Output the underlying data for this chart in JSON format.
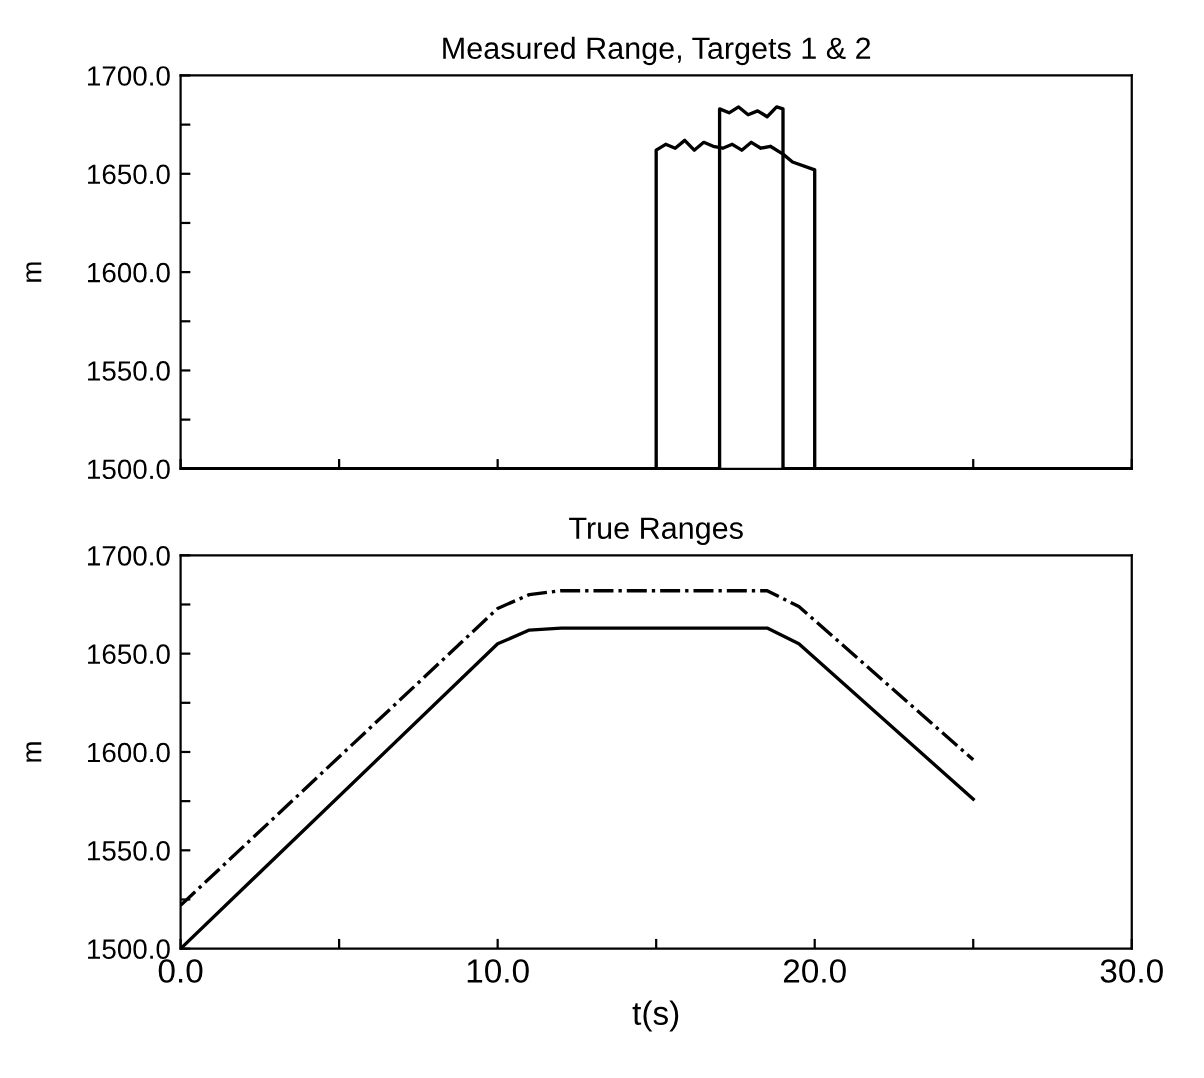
{
  "chart_data": [
    {
      "type": "line",
      "title": "Measured Range, Targets 1 & 2",
      "ylabel": "m",
      "tick_labels": "y",
      "grid": false,
      "legend": false,
      "xlim": [
        0,
        30
      ],
      "xticks": [
        {
          "value": 0,
          "label": null
        },
        {
          "value": 5,
          "label": null
        },
        {
          "value": 10,
          "label": null
        },
        {
          "value": 15,
          "label": null
        },
        {
          "value": 20,
          "label": null
        },
        {
          "value": 25,
          "label": null
        },
        {
          "value": 30,
          "label": null
        }
      ],
      "ylim": [
        1500,
        1700
      ],
      "yticks": [
        {
          "value": 1500,
          "label": "1500.0"
        },
        {
          "value": 1525,
          "label": null
        },
        {
          "value": 1550,
          "label": "1550.0"
        },
        {
          "value": 1575,
          "label": null
        },
        {
          "value": 1600,
          "label": "1600.0"
        },
        {
          "value": 1625,
          "label": null
        },
        {
          "value": 1650,
          "label": "1650.0"
        },
        {
          "value": 1675,
          "label": null
        },
        {
          "value": 1700,
          "label": "1700.0"
        }
      ],
      "series": [
        {
          "color": "#000000",
          "line_style": "solid",
          "x": [
            0,
            15,
            15,
            15.3,
            15.6,
            15.9,
            16.2,
            16.5,
            16.8,
            17.1,
            17.4,
            17.7,
            18.0,
            18.3,
            18.6,
            19.0,
            19.3,
            20,
            20,
            30
          ],
          "values": [
            1500,
            1500,
            1662,
            1665,
            1663,
            1667,
            1662,
            1666,
            1664,
            1663,
            1665,
            1662,
            1666,
            1663,
            1664,
            1660,
            1656,
            1652,
            1500,
            1500
          ]
        },
        {
          "color": "#000000",
          "line_style": "solid",
          "x": [
            0,
            17,
            17,
            17.3,
            17.6,
            17.9,
            18.2,
            18.5,
            18.8,
            19,
            19,
            30
          ],
          "values": [
            1500,
            1500,
            1683,
            1681,
            1684,
            1680,
            1682,
            1679,
            1684,
            1683,
            1500,
            1500
          ]
        }
      ]
    },
    {
      "type": "line",
      "title": "True Ranges",
      "ylabel": "m",
      "xlabel": "t(s)",
      "grid": false,
      "legend": false,
      "xlim": [
        0,
        30
      ],
      "xticks": [
        {
          "value": 0,
          "label": "0.0"
        },
        {
          "value": 5,
          "label": null
        },
        {
          "value": 10,
          "label": "10.0"
        },
        {
          "value": 15,
          "label": null
        },
        {
          "value": 20,
          "label": "20.0"
        },
        {
          "value": 25,
          "label": null
        },
        {
          "value": 30,
          "label": "30.0"
        }
      ],
      "ylim": [
        1500,
        1700
      ],
      "yticks": [
        {
          "value": 1500,
          "label": "1500.0"
        },
        {
          "value": 1525,
          "label": null
        },
        {
          "value": 1550,
          "label": "1550.0"
        },
        {
          "value": 1575,
          "label": null
        },
        {
          "value": 1600,
          "label": "1600.0"
        },
        {
          "value": 1625,
          "label": null
        },
        {
          "value": 1650,
          "label": "1650.0"
        },
        {
          "value": 1675,
          "label": null
        },
        {
          "value": 1700,
          "label": "1700.0"
        }
      ],
      "series": [
        {
          "color": "#000000",
          "line_style": "solid",
          "x": [
            0,
            10,
            11,
            12,
            18.5,
            19.5,
            25
          ],
          "values": [
            1500,
            1655,
            1662,
            1663,
            1663,
            1655,
            1576
          ]
        },
        {
          "color": "#000000",
          "line_style": "dashed",
          "x": [
            0,
            10,
            11,
            12,
            18.5,
            19.5,
            25
          ],
          "values": [
            1522,
            1673,
            1680,
            1682,
            1682,
            1674,
            1596
          ]
        }
      ]
    }
  ]
}
